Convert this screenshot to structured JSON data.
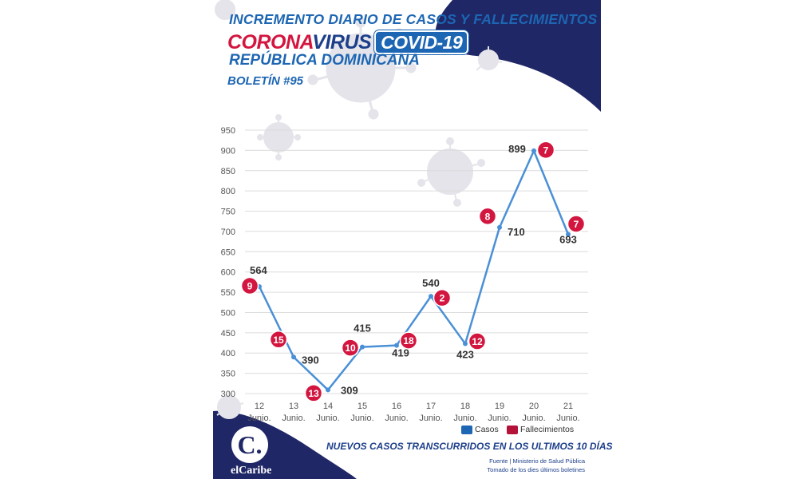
{
  "header": {
    "line1": "INCREMENTO DIARIO DE CASOS Y FALLECIMIENTOS",
    "brand_part1": "CORONA",
    "brand_part2": "VIRUS",
    "brand_badge": "COVID-19",
    "line3": "REPÚBLICA DOMINICANA",
    "bulletin": "BOLETÍN #95"
  },
  "footer": {
    "subtitle": "NUEVOS CASOS TRANSCURRIDOS EN LOS ULTIMOS 10 DÍAS",
    "source": "Fuente | Ministerio de Salud Pública",
    "note": "Tomado de  los dies últimos boletines",
    "logo_letter": "C.",
    "logo_text": "elCaribe"
  },
  "colors": {
    "cases": "#4a90d6",
    "deaths": "#d3163f",
    "navy": "#1f2766",
    "title_blue": "#1d66b3",
    "grid": "#dcdcdc",
    "virus": "#e4e4ea"
  },
  "chart_data": {
    "type": "line",
    "x": [
      "12\nJunio.",
      "13\nJunio.",
      "14\nJunio.",
      "15\nJunio.",
      "16\nJunio.",
      "17\nJunio.",
      "18\nJunio.",
      "19\nJunio.",
      "20\nJunio.",
      "21\nJunio."
    ],
    "x_day": [
      "12",
      "13",
      "14",
      "15",
      "16",
      "17",
      "18",
      "19",
      "20",
      "21"
    ],
    "x_month": "Junio.",
    "series": [
      {
        "name": "Casos",
        "values": [
          564,
          390,
          309,
          415,
          419,
          540,
          423,
          710,
          899,
          693
        ]
      },
      {
        "name": "Fallecimientos",
        "values": [
          9,
          15,
          13,
          10,
          18,
          2,
          12,
          8,
          7,
          7
        ]
      }
    ],
    "y_ticks": [
      300,
      350,
      400,
      450,
      500,
      550,
      600,
      650,
      700,
      750,
      800,
      850,
      900,
      950
    ],
    "ylim": [
      300,
      950
    ],
    "grid": true,
    "legend": "bottom-right"
  }
}
